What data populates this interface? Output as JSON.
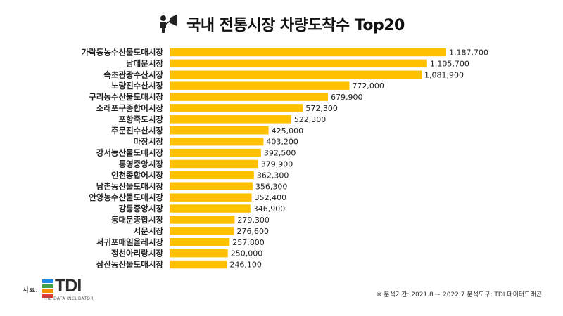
{
  "header": {
    "title": "국내 전통시장 차량도착수 Top20",
    "icon": "megaphone-person-icon"
  },
  "footer": {
    "source_label": "자료:",
    "logo_text": "TDI",
    "logo_subtext": "THE DATA INCUBATOR",
    "note": "※ 분석기간: 2021.8 ~ 2022.7   분석도구: TDI 데이터드래곤"
  },
  "colors": {
    "bar": "#FFC000",
    "logo_bars": [
      "#1E88E5",
      "#43A047",
      "#FB8C00",
      "#E53935"
    ]
  },
  "chart_data": {
    "type": "bar",
    "orientation": "horizontal",
    "title": "국내 전통시장 차량도착수 Top20",
    "categories": [
      "가락동농수산물도매시장",
      "남대문시장",
      "속초관광수산시장",
      "노량진수산시장",
      "구리농수산물도매시장",
      "소래포구종합어시장",
      "포항죽도시장",
      "주문진수산시장",
      "마장시장",
      "강서농산물도매시장",
      "통영중앙시장",
      "인천종합어시장",
      "남촌농산물도매시장",
      "안양농수산물도매시장",
      "강릉중앙시장",
      "동대문종합시장",
      "서문시장",
      "서귀포매일올레시장",
      "정선아리랑시장",
      "삼산농산물도매시장"
    ],
    "values": [
      1187700,
      1105700,
      1081900,
      772000,
      679900,
      572300,
      522300,
      425000,
      403200,
      392500,
      379900,
      362300,
      356300,
      352400,
      346900,
      279300,
      276600,
      257800,
      250000,
      246100
    ],
    "value_labels": [
      "1,187,700",
      "1,105,700",
      "1,081,900",
      "772,000",
      "679,900",
      "572,300",
      "522,300",
      "425,000",
      "403,200",
      "392,500",
      "379,900",
      "362,300",
      "356,300",
      "352,400",
      "346,900",
      "279,300",
      "276,600",
      "257,800",
      "250,000",
      "246,100"
    ],
    "xlim": [
      0,
      1187700
    ],
    "grid": false,
    "legend": "none"
  }
}
